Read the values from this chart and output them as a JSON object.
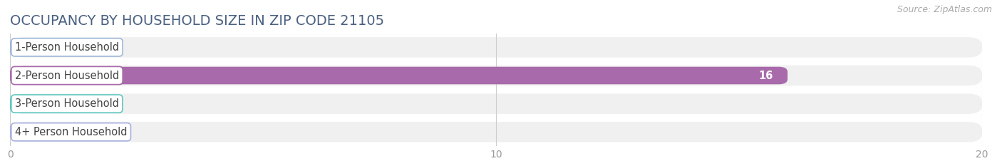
{
  "title": "OCCUPANCY BY HOUSEHOLD SIZE IN ZIP CODE 21105",
  "source_text": "Source: ZipAtlas.com",
  "categories": [
    "1-Person Household",
    "2-Person Household",
    "3-Person Household",
    "4+ Person Household"
  ],
  "values": [
    0,
    16,
    0,
    0
  ],
  "bar_colors": [
    "#9fb8d8",
    "#a86aaa",
    "#5ec8be",
    "#a8b0e0"
  ],
  "label_border_colors": [
    "#9fb8d8",
    "#a86aaa",
    "#5ec8be",
    "#a8b0e0"
  ],
  "row_bg_color": "#f0f0f0",
  "background_color": "#ffffff",
  "xlim": [
    0,
    20
  ],
  "xticks": [
    0,
    10,
    20
  ],
  "bar_height": 0.62,
  "value_label_inside_color": "#ffffff",
  "value_label_outside_color": "#999999",
  "title_fontsize": 14,
  "title_color": "#4a6080",
  "label_fontsize": 10.5,
  "tick_fontsize": 10,
  "source_fontsize": 9,
  "source_color": "#aaaaaa"
}
